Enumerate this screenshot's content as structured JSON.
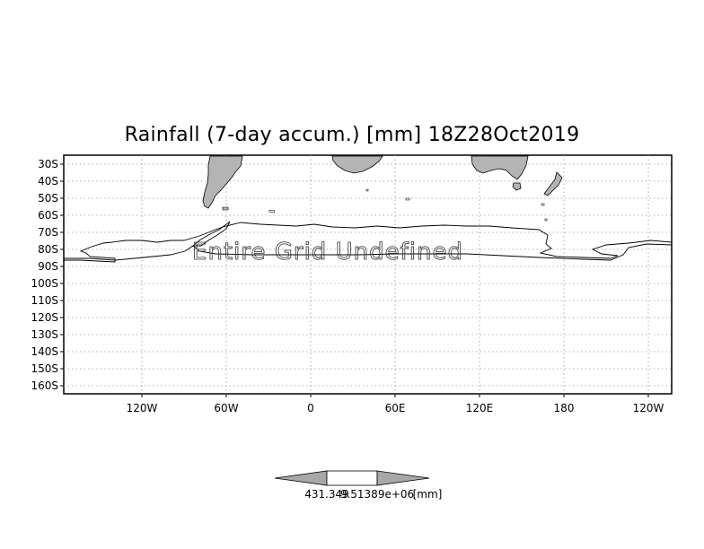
{
  "title": "Rainfall (7-day accum.) [mm] 18Z28Oct2019",
  "overlay_message": "Entire Grid Undefined",
  "lat_labels": [
    "30S",
    "40S",
    "50S",
    "60S",
    "70S",
    "80S",
    "90S",
    "100S",
    "110S",
    "120S",
    "130S",
    "140S",
    "150S",
    "160S"
  ],
  "lon_labels": [
    "120W",
    "60W",
    "0",
    "60E",
    "120E",
    "180",
    "120W"
  ],
  "colorbar": {
    "left_label": "431.349",
    "center_label": "9.51389e+06",
    "unit": "[mm]"
  },
  "colors": {
    "land": "#b4b4b4",
    "grid": "#9a9a9a",
    "frame": "#000000"
  }
}
